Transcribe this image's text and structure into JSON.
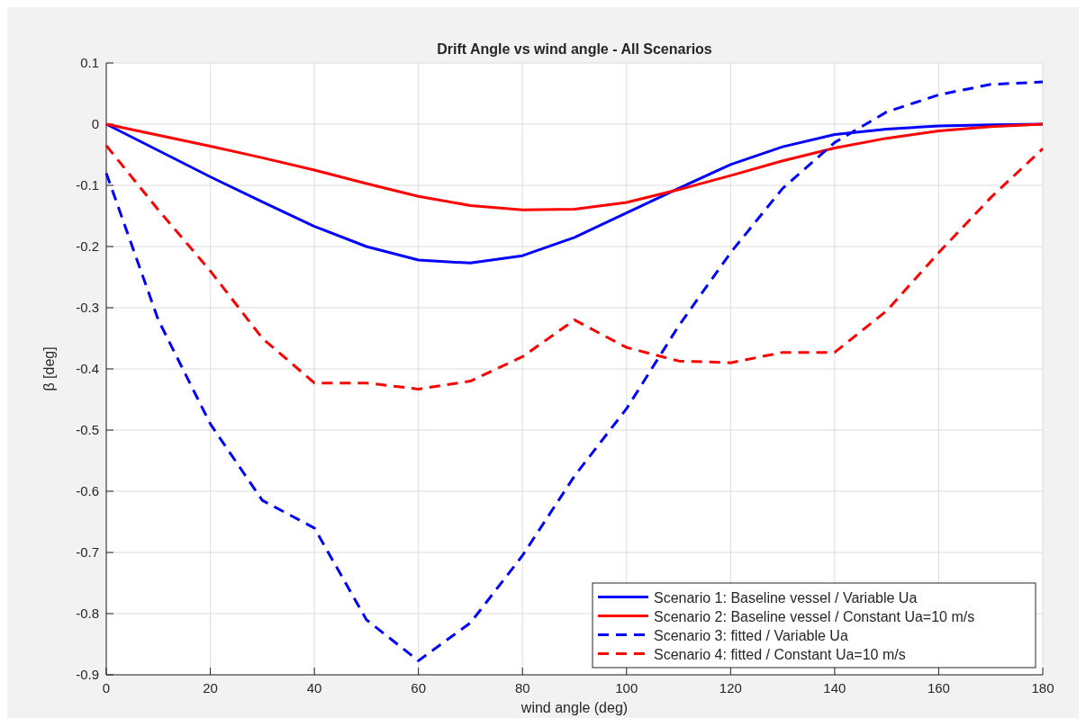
{
  "chart_data": {
    "type": "line",
    "title": "Drift Angle vs wind angle - All Scenarios",
    "xlabel": "wind angle (deg)",
    "ylabel": "β [deg]",
    "x": [
      0,
      10,
      20,
      30,
      40,
      50,
      60,
      70,
      80,
      90,
      100,
      110,
      120,
      130,
      140,
      150,
      160,
      170,
      180
    ],
    "series": [
      {
        "name": "Scenario 1: Baseline vessel / Variable Ua",
        "color": "#0000ff",
        "line_style": "solid",
        "values": [
          0,
          -0.043,
          -0.086,
          -0.127,
          -0.167,
          -0.2,
          -0.222,
          -0.227,
          -0.215,
          -0.185,
          -0.145,
          -0.105,
          -0.066,
          -0.037,
          -0.017,
          -0.008,
          -0.003,
          -0.001,
          0
        ]
      },
      {
        "name": "Scenario 2: Baseline vessel / Constant Ua=10 m/s",
        "color": "#ff0000",
        "line_style": "solid",
        "values": [
          0,
          -0.018,
          -0.036,
          -0.055,
          -0.075,
          -0.097,
          -0.118,
          -0.133,
          -0.14,
          -0.139,
          -0.128,
          -0.107,
          -0.084,
          -0.06,
          -0.039,
          -0.023,
          -0.011,
          -0.004,
          0
        ]
      },
      {
        "name": "Scenario 3: fitted / Variable Ua",
        "color": "#0000ff",
        "line_style": "dashed",
        "values": [
          -0.08,
          -0.32,
          -0.49,
          -0.615,
          -0.66,
          -0.81,
          -0.877,
          -0.815,
          -0.705,
          -0.575,
          -0.465,
          -0.33,
          -0.21,
          -0.105,
          -0.03,
          0.02,
          0.048,
          0.065,
          0.069
        ]
      },
      {
        "name": "Scenario 4: fitted / Constant Ua=10 m/s",
        "color": "#ff0000",
        "line_style": "dashed",
        "values": [
          -0.035,
          -0.14,
          -0.24,
          -0.35,
          -0.423,
          -0.423,
          -0.433,
          -0.42,
          -0.38,
          -0.32,
          -0.365,
          -0.387,
          -0.39,
          -0.373,
          -0.373,
          -0.305,
          -0.21,
          -0.12,
          -0.04
        ]
      }
    ],
    "xlim": [
      0,
      180
    ],
    "xticks": [
      0,
      20,
      40,
      60,
      80,
      100,
      120,
      140,
      160,
      180
    ],
    "ylim": [
      -0.9,
      0.1
    ],
    "yticks": [
      -0.9,
      -0.8,
      -0.7,
      -0.6,
      -0.5,
      -0.4,
      -0.3,
      -0.2,
      -0.1,
      0,
      0.1
    ],
    "grid": true,
    "legend": "bottom right",
    "marker": "none"
  }
}
